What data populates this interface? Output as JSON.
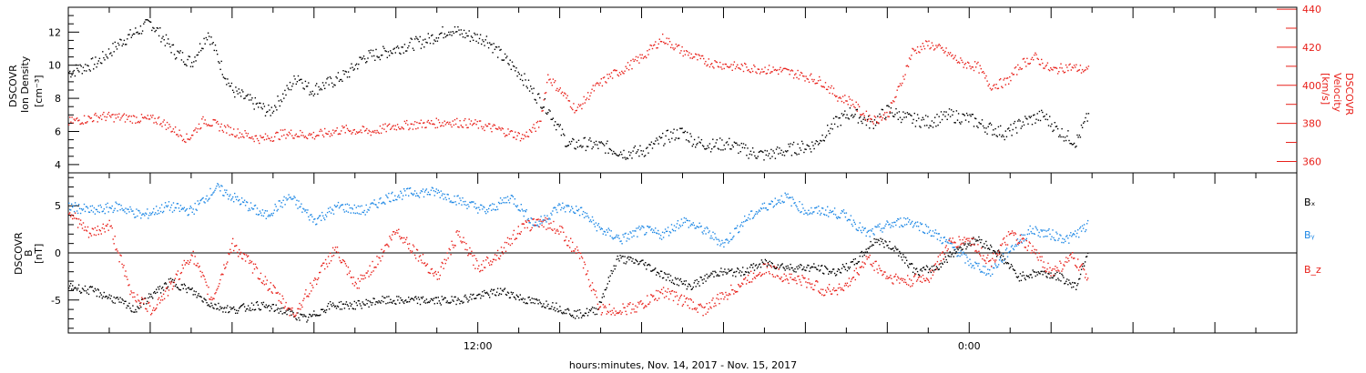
{
  "chart_data": [
    {
      "type": "scatter",
      "panel": "top",
      "ylabel_left": [
        "DSCOVR",
        "Ion Density",
        "[cm⁻³]"
      ],
      "ylabel_right": [
        "DSCOVR",
        "Velocity",
        "[km/s]"
      ],
      "yticks_left": [
        "4",
        "6",
        "8",
        "10",
        "12"
      ],
      "yticks_right": [
        "360",
        "380",
        "400",
        "420",
        "440"
      ],
      "ylim_left": [
        3.5,
        13.5
      ],
      "ylim_right": [
        354,
        441
      ],
      "series": [
        {
          "name": "density",
          "axis": "left",
          "color": "#000000",
          "x": [
            0.0,
            0.7,
            1.3,
            2.0,
            2.6,
            3.0,
            3.4,
            3.8,
            4.0,
            4.4,
            4.9,
            5.3,
            5.6,
            5.9,
            6.4,
            6.8,
            7.2,
            7.7,
            8.2,
            8.7,
            9.3,
            9.8,
            10.2,
            10.6,
            11.0,
            11.3,
            11.7,
            12.2,
            12.6,
            13.1,
            13.6,
            14.1,
            14.6,
            15.0,
            15.3,
            15.7,
            16.1,
            16.6,
            17.0,
            17.4,
            17.7,
            18.2,
            18.7,
            19.1,
            19.6,
            20.0,
            20.5,
            21.0,
            21.5,
            22.0,
            22.4,
            22.9,
            23.3,
            23.8,
            24.2,
            24.6,
            24.9
          ],
          "y": [
            9.6,
            10.2,
            11.5,
            12.6,
            10.8,
            10.2,
            12.0,
            9.5,
            8.5,
            7.9,
            7.2,
            8.4,
            9.4,
            8.5,
            9.0,
            9.5,
            10.5,
            10.8,
            11.2,
            11.5,
            12.2,
            11.8,
            11.6,
            10.5,
            9.6,
            8.5,
            7.4,
            5.2,
            5.3,
            5.1,
            4.7,
            4.9,
            5.7,
            6.0,
            5.4,
            5.2,
            5.3,
            4.8,
            4.6,
            4.8,
            5.0,
            5.2,
            6.5,
            7.2,
            6.5,
            7.3,
            6.8,
            6.6,
            7.0,
            6.8,
            6.3,
            5.9,
            6.6,
            7.0,
            6.0,
            5.4,
            7.0
          ]
        },
        {
          "name": "velocity",
          "axis": "right",
          "color": "#e8201a",
          "x": [
            0.0,
            0.8,
            1.5,
            2.2,
            2.9,
            3.3,
            4.0,
            4.7,
            5.3,
            6.0,
            6.7,
            7.4,
            8.0,
            8.7,
            9.3,
            9.9,
            10.5,
            11.1,
            11.5,
            11.7,
            12.1,
            12.4,
            12.8,
            13.2,
            13.5,
            14.0,
            14.5,
            15.0,
            15.4,
            15.7,
            16.3,
            16.8,
            17.4,
            18.0,
            18.4,
            18.8,
            19.1,
            19.4,
            19.7,
            20.0,
            20.3,
            20.6,
            21.0,
            21.4,
            21.8,
            22.2,
            22.5,
            22.9,
            23.3,
            23.6,
            24.0,
            24.4,
            24.9
          ],
          "y": [
            381,
            384,
            383,
            382,
            372,
            382,
            376,
            372,
            375,
            374,
            377,
            376,
            379,
            380,
            381,
            380,
            377,
            373,
            380,
            405,
            395,
            387,
            398,
            405,
            408,
            415,
            425,
            418,
            414,
            412,
            410,
            409,
            408,
            405,
            402,
            394,
            392,
            385,
            382,
            385,
            400,
            418,
            422,
            418,
            412,
            410,
            400,
            402,
            412,
            415,
            408,
            410,
            408
          ]
        }
      ]
    },
    {
      "type": "scatter",
      "panel": "bottom",
      "ylabel": [
        "DSCOVR",
        "B",
        "[nT]"
      ],
      "yticks": [
        "-5",
        "0",
        "5"
      ],
      "ylim": [
        -8.5,
        8.5
      ],
      "legend": [
        "Bₓ",
        "Bᵧ",
        "B_z"
      ],
      "legend_position": "right",
      "series": [
        {
          "name": "Bx",
          "color": "#000000",
          "x": [
            0.0,
            0.6,
            1.2,
            1.6,
            2.0,
            2.5,
            3.0,
            3.5,
            4.0,
            4.6,
            5.2,
            5.8,
            6.4,
            7.0,
            7.6,
            8.2,
            8.8,
            9.4,
            10.0,
            10.6,
            11.2,
            11.8,
            12.4,
            12.9,
            13.4,
            14.0,
            14.6,
            15.2,
            15.8,
            16.4,
            17.0,
            17.6,
            18.2,
            18.7,
            19.2,
            19.7,
            20.2,
            20.7,
            21.2,
            21.7,
            22.2,
            22.7,
            23.2,
            23.7,
            24.2,
            24.6,
            24.9
          ],
          "y": [
            -3.5,
            -4.0,
            -5.0,
            -6.0,
            -4.5,
            -3.0,
            -4.0,
            -5.5,
            -6.0,
            -5.5,
            -6.0,
            -7.0,
            -5.5,
            -5.5,
            -5.0,
            -5.0,
            -5.0,
            -5.0,
            -4.5,
            -4.0,
            -5.0,
            -5.5,
            -6.5,
            -6.0,
            -0.5,
            -1.0,
            -2.5,
            -3.5,
            -2.0,
            -2.0,
            -1.0,
            -1.5,
            -1.5,
            -2.0,
            -1.0,
            1.5,
            0.5,
            -2.0,
            -1.5,
            0.5,
            1.5,
            0.0,
            -2.5,
            -2.0,
            -2.5,
            -3.5,
            0.5
          ]
        },
        {
          "name": "By",
          "color": "#1e88e5",
          "x": [
            0.0,
            0.6,
            1.2,
            1.8,
            2.4,
            3.0,
            3.6,
            4.2,
            4.8,
            5.4,
            6.0,
            6.6,
            7.2,
            7.8,
            8.4,
            9.0,
            9.6,
            10.2,
            10.8,
            11.4,
            12.0,
            12.5,
            13.0,
            13.5,
            14.0,
            14.5,
            15.0,
            15.5,
            16.0,
            16.5,
            17.0,
            17.5,
            18.0,
            18.5,
            19.0,
            19.5,
            20.0,
            20.5,
            21.0,
            21.5,
            22.0,
            22.5,
            23.0,
            23.5,
            24.0,
            24.4,
            24.9
          ],
          "y": [
            5.0,
            4.5,
            5.0,
            4.0,
            5.0,
            4.5,
            7.0,
            5.5,
            4.0,
            6.0,
            3.5,
            5.0,
            4.5,
            6.0,
            6.5,
            6.5,
            5.5,
            4.5,
            6.0,
            3.0,
            5.0,
            4.5,
            2.5,
            1.5,
            2.5,
            2.0,
            3.5,
            2.5,
            1.0,
            3.5,
            5.0,
            6.0,
            4.5,
            4.5,
            4.0,
            2.0,
            3.0,
            3.5,
            2.5,
            1.0,
            -1.0,
            -2.0,
            0.5,
            2.5,
            2.0,
            1.5,
            3.0
          ]
        },
        {
          "name": "Bz",
          "color": "#e8201a",
          "x": [
            0.0,
            0.5,
            1.0,
            1.5,
            2.0,
            2.5,
            3.0,
            3.5,
            4.0,
            4.5,
            5.0,
            5.5,
            6.0,
            6.5,
            7.0,
            7.5,
            8.0,
            8.5,
            9.0,
            9.5,
            10.0,
            10.5,
            11.0,
            11.5,
            12.0,
            12.5,
            13.0,
            13.5,
            14.0,
            14.5,
            15.0,
            15.5,
            16.0,
            16.5,
            17.0,
            17.5,
            18.0,
            18.5,
            19.0,
            19.5,
            20.0,
            20.5,
            21.0,
            21.5,
            22.0,
            22.5,
            23.0,
            23.5,
            24.0,
            24.5,
            24.9
          ],
          "y": [
            4.5,
            2.0,
            3.0,
            -4.0,
            -6.0,
            -3.5,
            0.0,
            -5.0,
            1.0,
            -1.5,
            -4.0,
            -6.5,
            -3.0,
            0.5,
            -3.5,
            -1.0,
            2.5,
            0.0,
            -2.5,
            2.0,
            -1.5,
            0.0,
            2.5,
            3.5,
            2.5,
            -0.5,
            -6.0,
            -6.0,
            -5.5,
            -4.0,
            -5.0,
            -6.0,
            -4.5,
            -3.0,
            -1.5,
            -2.5,
            -3.0,
            -4.0,
            -3.5,
            -0.5,
            -2.5,
            -3.0,
            -2.5,
            1.0,
            1.5,
            -1.0,
            2.0,
            0.5,
            -2.0,
            -0.5,
            -2.5
          ]
        }
      ]
    }
  ],
  "x_axis": {
    "xlim": [
      0,
      30
    ],
    "tick_labels": [
      {
        "t": 10,
        "label": "12:00"
      },
      {
        "t": 22,
        "label": "0:00"
      }
    ],
    "xlabel": "hours:minutes, Nov. 14, 2017 - Nov. 15, 2017"
  }
}
